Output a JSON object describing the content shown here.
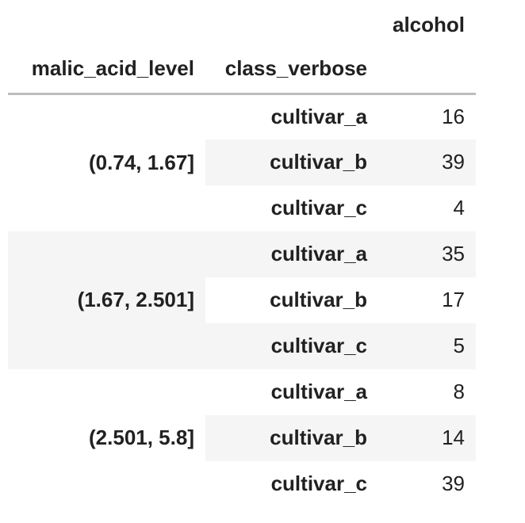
{
  "chart_data": {
    "type": "table",
    "value_column": "alcohol",
    "index_columns": [
      "malic_acid_level",
      "class_verbose"
    ],
    "groups": [
      {
        "level": "(0.74, 1.67]",
        "rows": [
          {
            "class": "cultivar_a",
            "value": "16"
          },
          {
            "class": "cultivar_b",
            "value": "39"
          },
          {
            "class": "cultivar_c",
            "value": "4"
          }
        ]
      },
      {
        "level": "(1.67, 2.501]",
        "rows": [
          {
            "class": "cultivar_a",
            "value": "35"
          },
          {
            "class": "cultivar_b",
            "value": "17"
          },
          {
            "class": "cultivar_c",
            "value": "5"
          }
        ]
      },
      {
        "level": "(2.501, 5.8]",
        "rows": [
          {
            "class": "cultivar_a",
            "value": "8"
          },
          {
            "class": "cultivar_b",
            "value": "14"
          },
          {
            "class": "cultivar_c",
            "value": "39"
          }
        ]
      }
    ],
    "layout": {
      "stripe_color": "#f5f5f5",
      "header_rule_color": "#bdbdbd",
      "text_color": "#212121",
      "value_alignment": "right"
    }
  }
}
